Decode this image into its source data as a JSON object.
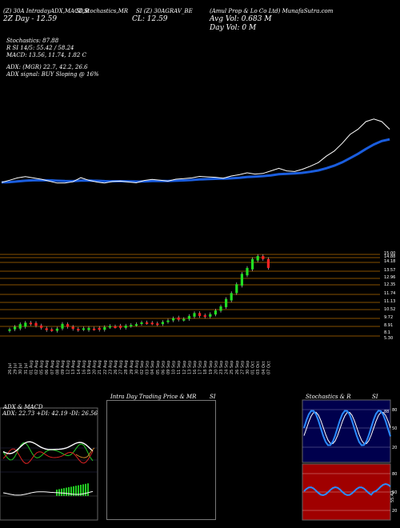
{
  "header": {
    "line1_left": "(Z) 30A IntradayADX,MACD,B",
    "line1_stoch": "SI,Stochastics,MR",
    "line1_mid": "SI (Ζ) 30AGRAV_BE",
    "line1_right": "(Amul Prop & Lo Co Ltd) MunafaSutra.com",
    "date_prefix": "2Z Day",
    "price_label": "12.59",
    "close_label": "CL: 12.59",
    "volume_label": "Avg Vol: 0.683 M",
    "day_volume": "Day Vol: 0  M"
  },
  "indicators": {
    "stochastics": "Stochastics: 87.88",
    "rsi": "R          SI 14/5: 55.42 / 58.24",
    "macd": "MACD: 13.56,  11.74,  1.82  C",
    "adx": "ADX:                        (MGR) 22.7,  42.2,  26.6",
    "adx_signal": "ADX  signal:                        BUY Sloping @ 16%"
  },
  "chart_data": {
    "type": "candlestick",
    "title": "Amul Prop & Lo Co Ltd",
    "x": [
      "26 Jul",
      "29 Jul",
      "30 Jul",
      "31 Jul",
      "01 Aug",
      "02 Aug",
      "05 Aug",
      "06 Aug",
      "07 Aug",
      "08 Aug",
      "09 Aug",
      "12 Aug",
      "13 Aug",
      "14 Aug",
      "16 Aug",
      "19 Aug",
      "20 Aug",
      "21 Aug",
      "22 Aug",
      "23 Aug",
      "26 Aug",
      "27 Aug",
      "28 Aug",
      "29 Aug",
      "30 Aug",
      "02 Sep",
      "03 Sep",
      "04 Sep",
      "05 Sep",
      "06 Sep",
      "09 Sep",
      "10 Sep",
      "11 Sep",
      "12 Sep",
      "13 Sep",
      "16 Sep",
      "17 Sep",
      "18 Sep",
      "19 Sep",
      "20 Sep",
      "23 Sep",
      "24 Sep",
      "25 Sep",
      "26 Sep",
      "27 Sep",
      "30 Sep",
      "01 Oct",
      "03 Oct",
      "04 Oct",
      "07 Oct"
    ],
    "open": [
      8.35,
      8.45,
      8.5,
      8.62,
      8.9,
      8.88,
      8.71,
      8.52,
      8.45,
      8.35,
      8.5,
      8.8,
      8.62,
      8.48,
      8.45,
      8.4,
      8.5,
      8.55,
      8.42,
      8.6,
      8.65,
      8.7,
      8.55,
      8.68,
      8.75,
      8.82,
      8.92,
      8.9,
      8.85,
      8.8,
      8.95,
      9.05,
      9.25,
      9.1,
      9.15,
      9.3,
      9.55,
      9.4,
      9.3,
      9.45,
      9.7,
      9.95,
      10.4,
      10.9,
      11.4,
      12.1,
      12.5,
      13.1,
      13.4,
      13.2
    ],
    "close": [
      8.45,
      8.62,
      8.8,
      8.9,
      8.8,
      8.7,
      8.55,
      8.4,
      8.4,
      8.5,
      8.82,
      8.62,
      8.48,
      8.4,
      8.52,
      8.55,
      8.48,
      8.42,
      8.6,
      8.68,
      8.62,
      8.55,
      8.7,
      8.75,
      8.8,
      8.92,
      8.88,
      8.85,
      8.78,
      8.95,
      9.05,
      9.2,
      9.1,
      9.15,
      9.35,
      9.55,
      9.35,
      9.3,
      9.48,
      9.72,
      10.0,
      10.5,
      10.9,
      11.5,
      12.2,
      12.6,
      13.2,
      13.4,
      13.2,
      12.6
    ],
    "ylabels": [
      "15.00",
      "14.88",
      "14.18",
      "13.57",
      "12.96",
      "12.35",
      "11.74",
      "11.13",
      "10.52",
      "9.72",
      "8.91",
      "8.1",
      "5.30"
    ],
    "series": [
      {
        "name": "Price",
        "color": "#ffffff"
      },
      {
        "name": "MA",
        "color": "#1a5dde"
      }
    ]
  },
  "panels": {
    "adx_title": "ADX  & MACD",
    "adx_readout": "ADX: 22.73  +DI: 42.19 -DI: 26.56",
    "intraday_title": "Intra  Day Trading Price  & MR",
    "intraday_si": "SI",
    "stoch_title": "Stochastics & R",
    "stoch_si": "SI",
    "stoch_labels": [
      "80",
      "50",
      "20"
    ],
    "rsi_labels": [
      "80",
      "50",
      "20"
    ],
    "stoch_value": "88",
    "rsi_value": "55.42"
  }
}
